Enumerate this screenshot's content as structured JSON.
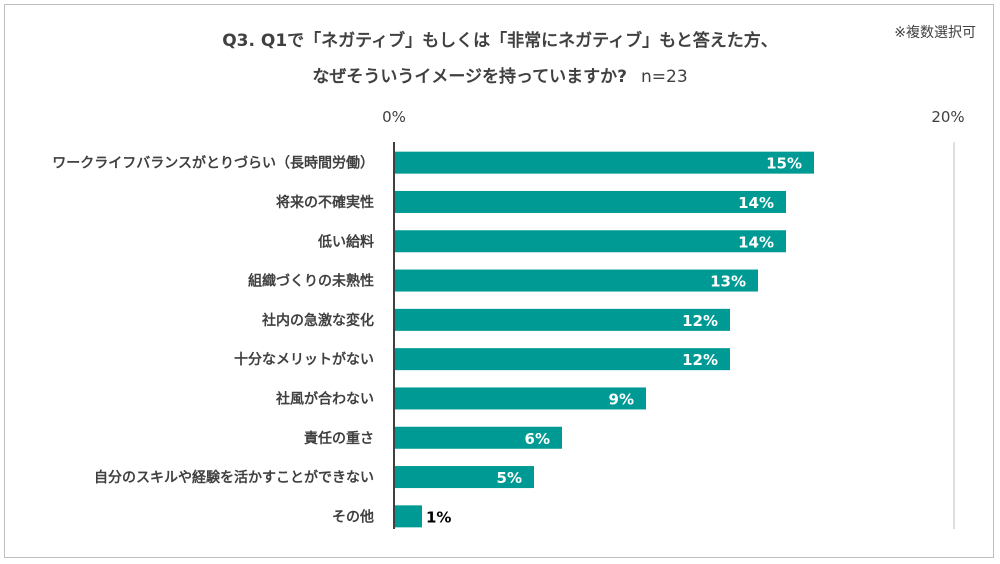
{
  "header": {
    "title_line1": "Q3. Q1で「ネガティブ」もしくは「非常にネガティブ」もと答えた方、",
    "title_line2": "なぜそういうイメージを持っていますか?",
    "sample_size": "n=23",
    "note": "※複数選択可"
  },
  "colors": {
    "bar": "#009a94",
    "axis": "#404040",
    "inside_label": "#ffffff",
    "outside_label": "#000000"
  },
  "chart_data": {
    "type": "bar",
    "orientation": "horizontal",
    "title": "Q3. Q1で「ネガティブ」もしくは「非常にネガティブ」もと答えた方、なぜそういうイメージを持っていますか?",
    "categories": [
      "ワークライフバランスがとりづらい（長時間労働）",
      "将来の不確実性",
      "低い給料",
      "組織づくりの未熟性",
      "社内の急激な変化",
      "十分なメリットがない",
      "社風が合わない",
      "責任の重さ",
      "自分のスキルや経験を活かすことができない",
      "その他"
    ],
    "values": [
      15,
      14,
      14,
      13,
      12,
      12,
      9,
      6,
      5,
      1
    ],
    "value_labels": [
      "15%",
      "14%",
      "14%",
      "13%",
      "12%",
      "12%",
      "9%",
      "6%",
      "5%",
      "1%"
    ],
    "xlim": [
      0,
      20
    ],
    "tick_labels": [
      "0%",
      "20%"
    ],
    "grid": false,
    "legend": "none"
  }
}
